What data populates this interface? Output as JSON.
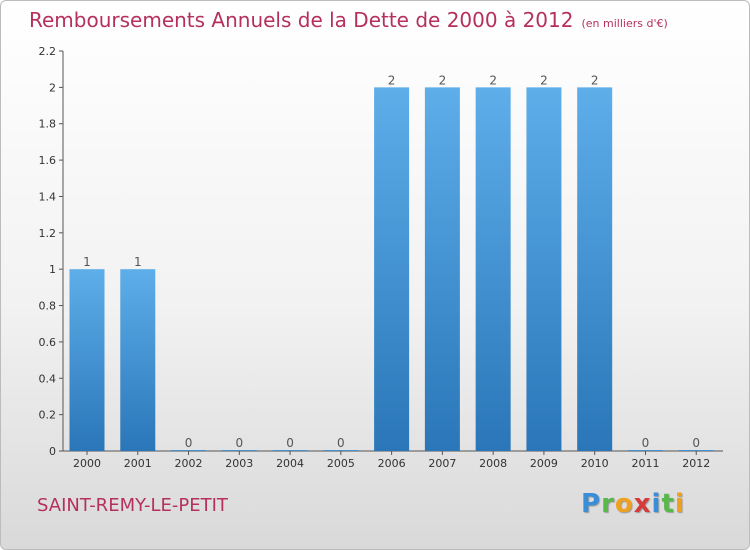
{
  "title": "Remboursements Annuels de la Dette de 2000 à 2012",
  "subtitle": "(en milliers d'€)",
  "commune": "SAINT-REMY-LE-PETIT",
  "logo": {
    "letters": [
      {
        "char": "P",
        "color": "#3a8ed8"
      },
      {
        "char": "r",
        "color": "#58b84a"
      },
      {
        "char": "o",
        "color": "#f0a020"
      },
      {
        "char": "x",
        "color": "#d63b3b"
      },
      {
        "char": "i",
        "color": "#3a8ed8"
      },
      {
        "char": "t",
        "color": "#58b84a"
      },
      {
        "char": "i",
        "color": "#f0a020"
      }
    ]
  },
  "chart_data": {
    "type": "bar",
    "categories": [
      "2000",
      "2001",
      "2002",
      "2003",
      "2004",
      "2005",
      "2006",
      "2007",
      "2008",
      "2009",
      "2010",
      "2011",
      "2012"
    ],
    "values": [
      1,
      1,
      0,
      0,
      0,
      0,
      2,
      2,
      2,
      2,
      2,
      0,
      0
    ],
    "data_labels": [
      "1",
      "1",
      "0",
      "0",
      "0",
      "0",
      "2",
      "2",
      "2",
      "2",
      "2",
      "0",
      "0"
    ],
    "yticks": [
      "0",
      "0.2",
      "0.4",
      "0.6",
      "0.8",
      "1",
      "1.2",
      "1.4",
      "1.6",
      "1.8",
      "2",
      "2.2"
    ],
    "ylim": [
      0,
      2.2
    ],
    "grid": false,
    "bar_color_top": "#5eaeea",
    "bar_color_bottom": "#2a76b8"
  }
}
